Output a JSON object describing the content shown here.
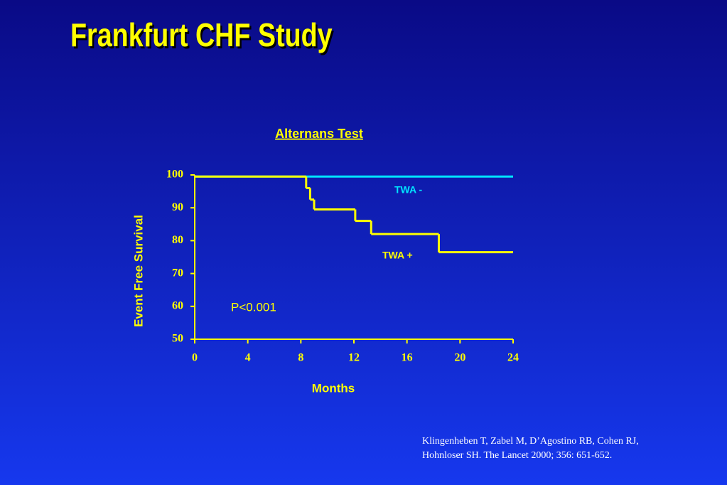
{
  "title": "Frankfurt CHF Study",
  "chart_data": {
    "type": "step",
    "title": "Alternans Test",
    "x_label": "Months",
    "y_label": "Event Free Survival",
    "xlim": [
      0,
      24
    ],
    "ylim": [
      50,
      100
    ],
    "xticks": [
      0,
      4,
      8,
      12,
      16,
      20,
      24
    ],
    "yticks": [
      50,
      60,
      70,
      80,
      90,
      100
    ],
    "axis_color": "#ffff00",
    "series": [
      {
        "name": "TWA -",
        "color": "#00e5ff",
        "x": [
          0
        ],
        "values": [
          99.5
        ]
      },
      {
        "name": "TWA +",
        "color": "#ffff00",
        "x": [
          0,
          8.4,
          8.7,
          9.0,
          12.1,
          13.3,
          18.4
        ],
        "values": [
          99.5,
          96,
          92.5,
          89.5,
          86,
          82,
          76.5
        ]
      }
    ],
    "annotations": [
      "P<0.001"
    ]
  },
  "citation": [
    "Klingenheben T, Zabel M, D’Agostino RB, Cohen RJ,",
    "Hohnloser SH. The Lancet 2000; 356: 651-652."
  ]
}
